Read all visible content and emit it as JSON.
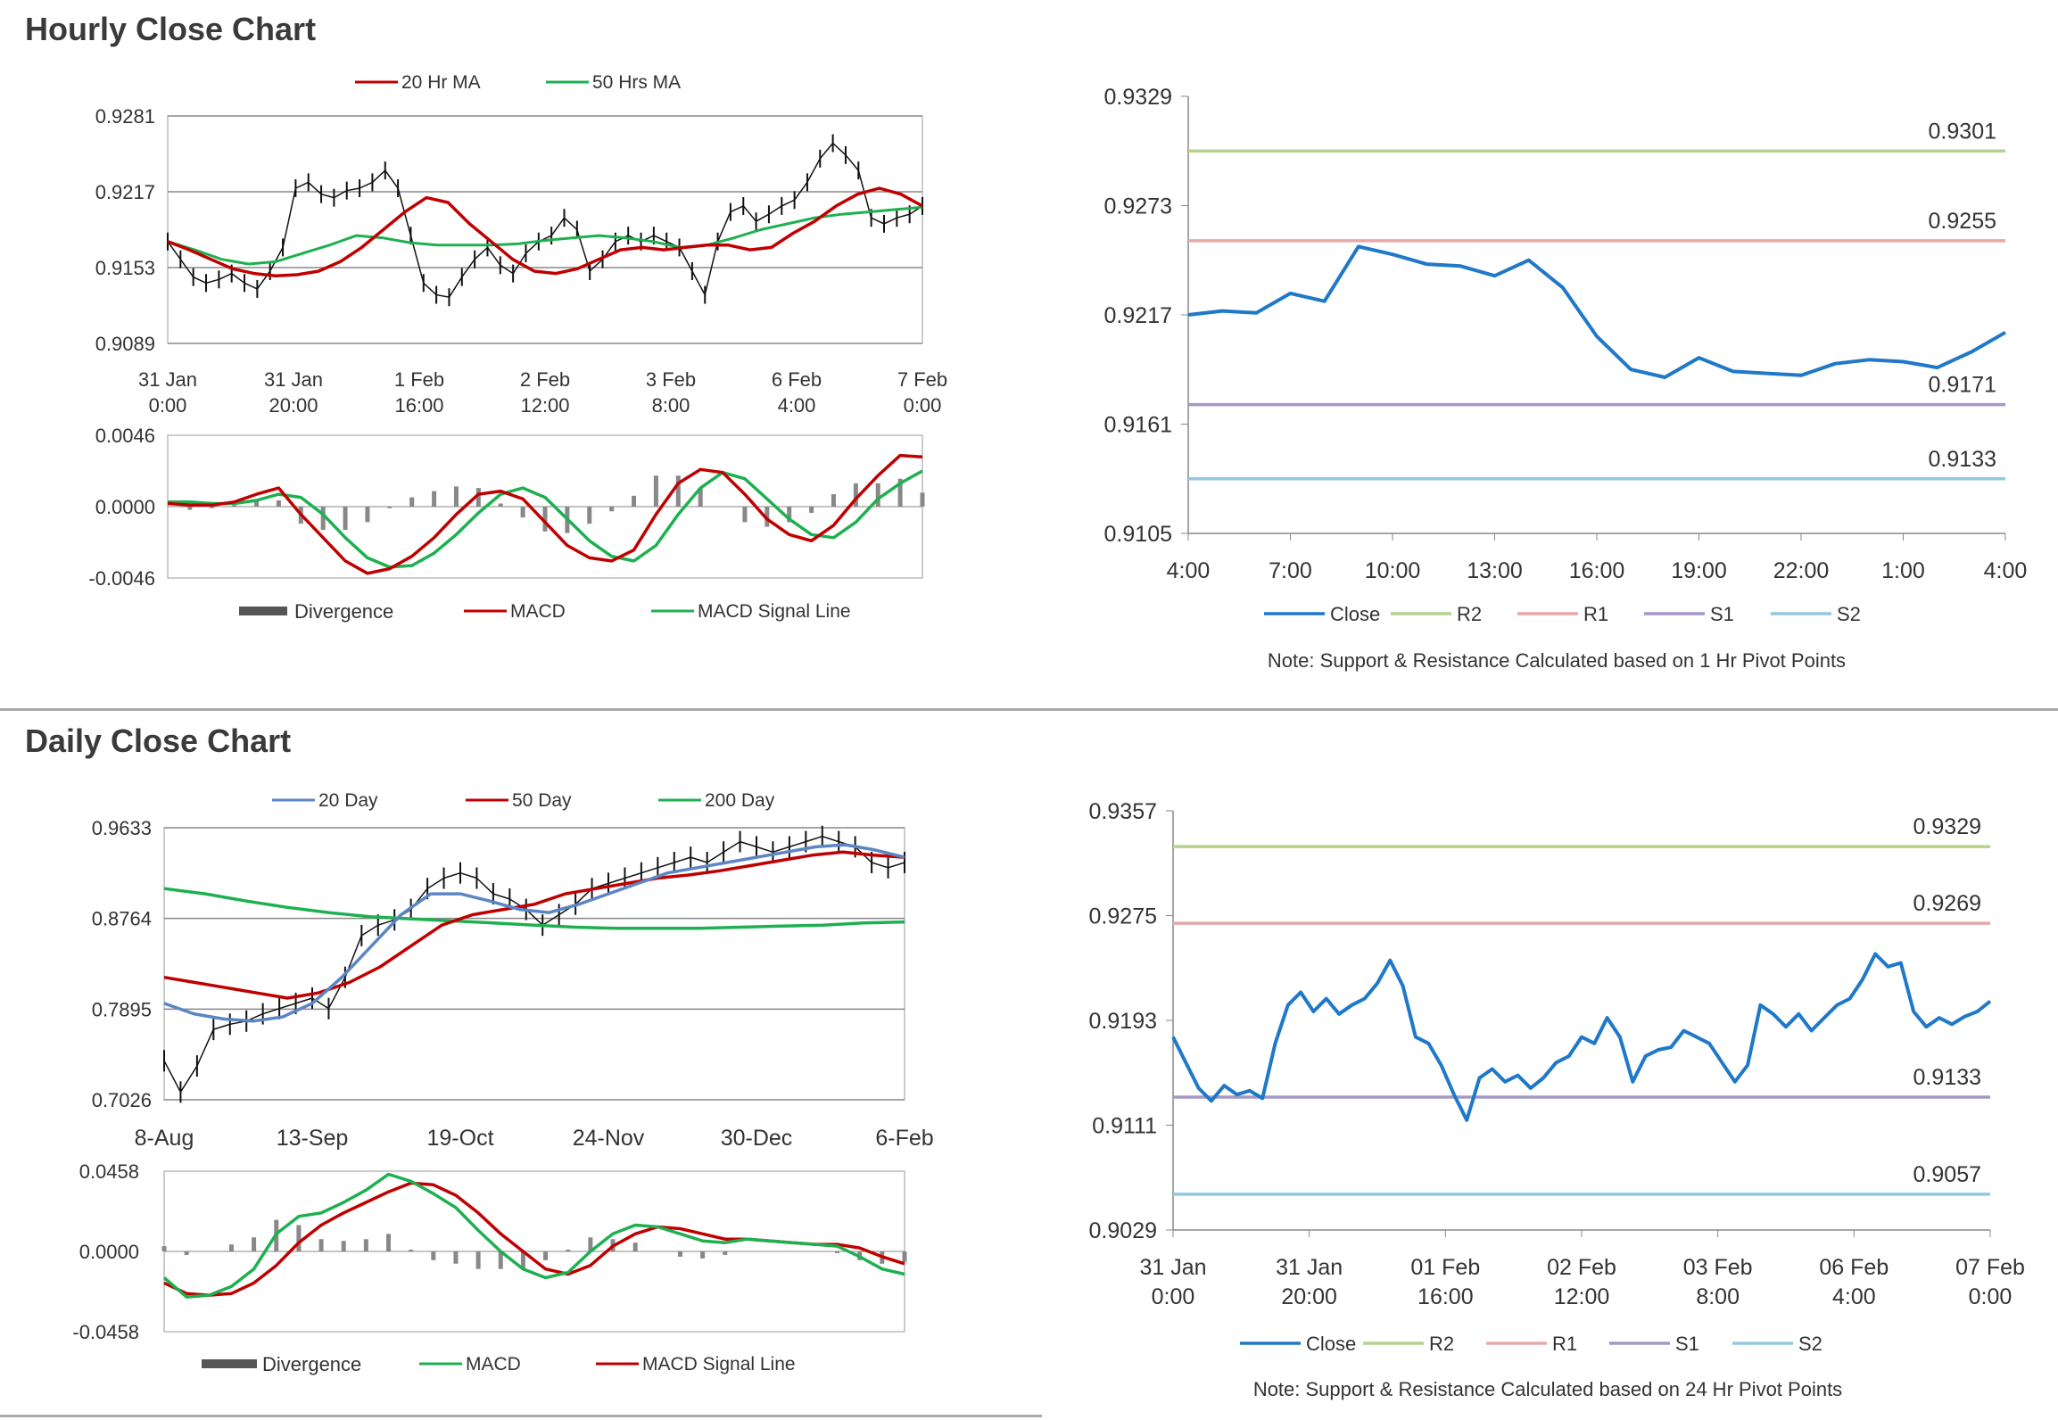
{
  "sections": {
    "hourly_title": "Hourly Close Chart",
    "daily_title": "Daily Close Chart"
  },
  "colors": {
    "black": "#111111",
    "red": "#c00000",
    "green": "#1eb050",
    "blue": "#1f78c8",
    "steel": "#5b86c4",
    "r2": "#b6d38e",
    "r1": "#e8a8a8",
    "s1": "#a597c6",
    "s2": "#8fc9de",
    "grid": "#888888",
    "hist": "#888888"
  },
  "chart_data": [
    {
      "id": "hourly_price",
      "type": "line",
      "legend": [
        "20 Hr MA",
        "50 Hrs MA"
      ],
      "yticks": [
        "0.9281",
        "0.9217",
        "0.9153",
        "0.9089"
      ],
      "ylim": [
        0.9089,
        0.9281
      ],
      "xticks": [
        [
          "31 Jan",
          "0:00"
        ],
        [
          "31 Jan",
          "20:00"
        ],
        [
          "1 Feb",
          "16:00"
        ],
        [
          "2 Feb",
          "12:00"
        ],
        [
          "3 Feb",
          "8:00"
        ],
        [
          "6 Feb",
          "4:00"
        ],
        [
          "7 Feb",
          "0:00"
        ]
      ],
      "price": [
        0.9175,
        0.916,
        0.9145,
        0.914,
        0.9143,
        0.9148,
        0.914,
        0.9135,
        0.915,
        0.917,
        0.922,
        0.9225,
        0.9215,
        0.9212,
        0.9218,
        0.922,
        0.9225,
        0.9235,
        0.922,
        0.918,
        0.914,
        0.913,
        0.9128,
        0.9145,
        0.916,
        0.917,
        0.9155,
        0.9148,
        0.9165,
        0.9175,
        0.918,
        0.9195,
        0.9185,
        0.915,
        0.916,
        0.9175,
        0.918,
        0.9175,
        0.918,
        0.9175,
        0.917,
        0.915,
        0.913,
        0.9175,
        0.92,
        0.9205,
        0.9192,
        0.9198,
        0.9205,
        0.921,
        0.9225,
        0.9245,
        0.9258,
        0.9248,
        0.9235,
        0.9195,
        0.919,
        0.9195,
        0.9198,
        0.9205
      ],
      "ma20": [
        0.9175,
        0.9168,
        0.916,
        0.9152,
        0.9148,
        0.9146,
        0.9147,
        0.915,
        0.9158,
        0.917,
        0.9185,
        0.92,
        0.9212,
        0.9208,
        0.919,
        0.9175,
        0.916,
        0.915,
        0.9148,
        0.9152,
        0.916,
        0.9168,
        0.917,
        0.9168,
        0.917,
        0.9172,
        0.9172,
        0.9168,
        0.917,
        0.9182,
        0.9192,
        0.9205,
        0.9215,
        0.922,
        0.9215,
        0.9205
      ],
      "ma50": [
        0.9175,
        0.9168,
        0.916,
        0.9156,
        0.9158,
        0.9165,
        0.9172,
        0.918,
        0.9178,
        0.9174,
        0.9172,
        0.9172,
        0.9172,
        0.9173,
        0.9176,
        0.9178,
        0.918,
        0.9178,
        0.9175,
        0.917,
        0.9172,
        0.9178,
        0.9185,
        0.919,
        0.9195,
        0.9198,
        0.92,
        0.9202,
        0.9204
      ]
    },
    {
      "id": "hourly_macd",
      "type": "line",
      "legend": [
        "Divergence",
        "MACD",
        "MACD Signal Line"
      ],
      "yticks": [
        "0.0046",
        "0.0000",
        "-0.0046"
      ],
      "ylim": [
        -0.0046,
        0.0046
      ],
      "macd": [
        0.0002,
        0.0001,
        0.0001,
        0.0003,
        0.0008,
        0.0012,
        -0.0005,
        -0.002,
        -0.0035,
        -0.0043,
        -0.004,
        -0.0032,
        -0.002,
        -0.0005,
        0.0008,
        0.001,
        0.0005,
        -0.001,
        -0.0025,
        -0.0033,
        -0.0035,
        -0.0028,
        -0.0005,
        0.0015,
        0.0024,
        0.0022,
        0.0008,
        -0.0008,
        -0.0018,
        -0.0022,
        -0.0012,
        0.0005,
        0.002,
        0.0033,
        0.0032
      ],
      "signal": [
        0.0003,
        0.0003,
        0.0002,
        0.0002,
        0.0004,
        0.0008,
        0.0006,
        -0.0005,
        -0.002,
        -0.0033,
        -0.0039,
        -0.0038,
        -0.003,
        -0.0018,
        -0.0004,
        0.0008,
        0.0012,
        0.0006,
        -0.0008,
        -0.0022,
        -0.0032,
        -0.0035,
        -0.0025,
        -0.0005,
        0.0012,
        0.0022,
        0.0018,
        0.0005,
        -0.0008,
        -0.0018,
        -0.002,
        -0.001,
        0.0005,
        0.0015,
        0.0023
      ],
      "divergence": [
        0.0,
        -0.0002,
        -0.0001,
        0.0001,
        0.0004,
        0.0004,
        -0.0011,
        -0.0015,
        -0.0015,
        -0.001,
        -0.0001,
        0.0006,
        0.001,
        0.0013,
        0.0012,
        0.0002,
        -0.0007,
        -0.0016,
        -0.0017,
        -0.0011,
        -0.0003,
        0.0007,
        0.002,
        0.002,
        0.0012,
        0.0,
        -0.001,
        -0.0013,
        -0.001,
        -0.0004,
        0.0008,
        0.0015,
        0.0015,
        0.0018,
        0.0009
      ]
    },
    {
      "id": "hourly_pivot",
      "type": "line",
      "yticks": [
        "0.9329",
        "0.9273",
        "0.9217",
        "0.9161",
        "0.9105"
      ],
      "ylim": [
        0.9105,
        0.9329
      ],
      "xticks": [
        "4:00",
        "7:00",
        "10:00",
        "13:00",
        "16:00",
        "19:00",
        "22:00",
        "1:00",
        "4:00"
      ],
      "levels": [
        {
          "name": "R2",
          "value": 0.9301,
          "label": "0.9301"
        },
        {
          "name": "R1",
          "value": 0.9255,
          "label": "0.9255"
        },
        {
          "name": "S1",
          "value": 0.9171,
          "label": "0.9171"
        },
        {
          "name": "S2",
          "value": 0.9133,
          "label": "0.9133"
        }
      ],
      "close": [
        0.9217,
        0.9219,
        0.9218,
        0.9228,
        0.9224,
        0.9252,
        0.9248,
        0.9243,
        0.9242,
        0.9237,
        0.9245,
        0.9231,
        0.9206,
        0.9189,
        0.9185,
        0.9195,
        0.9188,
        0.9187,
        0.9186,
        0.9192,
        0.9194,
        0.9193,
        0.919,
        0.9198,
        0.9208
      ],
      "legend": [
        "Close",
        "R2",
        "R1",
        "S1",
        "S2"
      ],
      "note": "Note: Support & Resistance Calculated based on 1 Hr Pivot Points"
    },
    {
      "id": "daily_price",
      "type": "line",
      "legend": [
        "20 Day",
        "50 Day",
        "200 Day"
      ],
      "yticks": [
        "0.9633",
        "0.8764",
        "0.7895",
        "0.7026"
      ],
      "ylim": [
        0.7026,
        0.9633
      ],
      "xticks": [
        "8-Aug",
        "13-Sep",
        "19-Oct",
        "24-Nov",
        "30-Dec",
        "6-Feb"
      ],
      "price": [
        0.74,
        0.71,
        0.735,
        0.77,
        0.775,
        0.778,
        0.785,
        0.79,
        0.795,
        0.8,
        0.79,
        0.82,
        0.86,
        0.87,
        0.875,
        0.885,
        0.905,
        0.915,
        0.92,
        0.915,
        0.9,
        0.895,
        0.885,
        0.87,
        0.88,
        0.89,
        0.905,
        0.91,
        0.915,
        0.92,
        0.925,
        0.93,
        0.935,
        0.93,
        0.94,
        0.95,
        0.945,
        0.94,
        0.945,
        0.95,
        0.955,
        0.95,
        0.945,
        0.93,
        0.925,
        0.93
      ],
      "ma20": [
        0.795,
        0.785,
        0.78,
        0.778,
        0.782,
        0.795,
        0.82,
        0.85,
        0.88,
        0.9,
        0.9,
        0.893,
        0.885,
        0.882,
        0.89,
        0.9,
        0.91,
        0.92,
        0.925,
        0.93,
        0.935,
        0.94,
        0.945,
        0.947,
        0.942,
        0.935
      ],
      "ma50": [
        0.82,
        0.815,
        0.81,
        0.805,
        0.8,
        0.805,
        0.815,
        0.83,
        0.85,
        0.87,
        0.88,
        0.885,
        0.89,
        0.9,
        0.905,
        0.91,
        0.915,
        0.918,
        0.922,
        0.927,
        0.932,
        0.937,
        0.94,
        0.937,
        0.935
      ],
      "ma200": [
        0.905,
        0.9,
        0.893,
        0.887,
        0.882,
        0.878,
        0.876,
        0.874,
        0.872,
        0.87,
        0.868,
        0.867,
        0.867,
        0.867,
        0.868,
        0.869,
        0.87,
        0.872,
        0.873
      ]
    },
    {
      "id": "daily_macd",
      "type": "line",
      "legend": [
        "Divergence",
        "MACD",
        "MACD Signal Line"
      ],
      "yticks": [
        "0.0458",
        "0.0000",
        "-0.0458"
      ],
      "ylim": [
        -0.0458,
        0.0458
      ],
      "macd": [
        -0.015,
        -0.026,
        -0.025,
        -0.02,
        -0.01,
        0.01,
        0.02,
        0.022,
        0.028,
        0.035,
        0.044,
        0.04,
        0.033,
        0.025,
        0.012,
        0.0,
        -0.01,
        -0.015,
        -0.012,
        0.0,
        0.01,
        0.015,
        0.014,
        0.01,
        0.006,
        0.005,
        0.007,
        0.006,
        0.005,
        0.004,
        0.003,
        -0.003,
        -0.01,
        -0.013
      ],
      "signal": [
        -0.018,
        -0.024,
        -0.025,
        -0.024,
        -0.018,
        -0.008,
        0.005,
        0.015,
        0.022,
        0.028,
        0.034,
        0.039,
        0.038,
        0.032,
        0.022,
        0.01,
        0.0,
        -0.01,
        -0.013,
        -0.008,
        0.003,
        0.01,
        0.014,
        0.013,
        0.01,
        0.007,
        0.007,
        0.006,
        0.005,
        0.004,
        0.004,
        0.002,
        -0.003,
        -0.007
      ],
      "divergence": [
        0.003,
        -0.002,
        0.0,
        0.004,
        0.008,
        0.018,
        0.015,
        0.007,
        0.006,
        0.007,
        0.01,
        0.001,
        -0.005,
        -0.007,
        -0.01,
        -0.01,
        -0.01,
        -0.005,
        0.001,
        0.008,
        0.007,
        0.005,
        0.0,
        -0.003,
        -0.004,
        -0.002,
        0.0,
        0.0,
        0.0,
        0.0,
        -0.001,
        -0.005,
        -0.007,
        -0.006
      ],
      "colors_note": "MACD green, Signal red"
    },
    {
      "id": "daily_pivot",
      "type": "line",
      "yticks": [
        "0.9357",
        "0.9275",
        "0.9193",
        "0.9111",
        "0.9029"
      ],
      "ylim": [
        0.9029,
        0.9357
      ],
      "xticks": [
        [
          "31 Jan",
          "0:00"
        ],
        [
          "31 Jan",
          "20:00"
        ],
        [
          "01 Feb",
          "16:00"
        ],
        [
          "02 Feb",
          "12:00"
        ],
        [
          "03 Feb",
          "8:00"
        ],
        [
          "06 Feb",
          "4:00"
        ],
        [
          "07 Feb",
          "0:00"
        ]
      ],
      "levels": [
        {
          "name": "R2",
          "value": 0.9329,
          "label": "0.9329"
        },
        {
          "name": "R1",
          "value": 0.9269,
          "label": "0.9269"
        },
        {
          "name": "S1",
          "value": 0.9133,
          "label": "0.9133"
        },
        {
          "name": "S2",
          "value": 0.9057,
          "label": "0.9057"
        }
      ],
      "close": [
        0.918,
        0.916,
        0.914,
        0.913,
        0.9142,
        0.9135,
        0.9138,
        0.9132,
        0.9175,
        0.9205,
        0.9215,
        0.92,
        0.921,
        0.9198,
        0.9205,
        0.921,
        0.9222,
        0.924,
        0.922,
        0.918,
        0.9175,
        0.9158,
        0.9135,
        0.9115,
        0.9148,
        0.9155,
        0.9145,
        0.915,
        0.914,
        0.9148,
        0.916,
        0.9165,
        0.918,
        0.9175,
        0.9195,
        0.918,
        0.9145,
        0.9165,
        0.917,
        0.9172,
        0.9185,
        0.918,
        0.9175,
        0.916,
        0.9145,
        0.9158,
        0.9205,
        0.9198,
        0.9188,
        0.9198,
        0.9185,
        0.9195,
        0.9205,
        0.921,
        0.9225,
        0.9245,
        0.9235,
        0.9238,
        0.92,
        0.9188,
        0.9195,
        0.919,
        0.9196,
        0.92,
        0.9208
      ],
      "legend": [
        "Close",
        "R2",
        "R1",
        "S1",
        "S2"
      ],
      "note": "Note: Support & Resistance Calculated based on 24 Hr Pivot Points"
    }
  ]
}
